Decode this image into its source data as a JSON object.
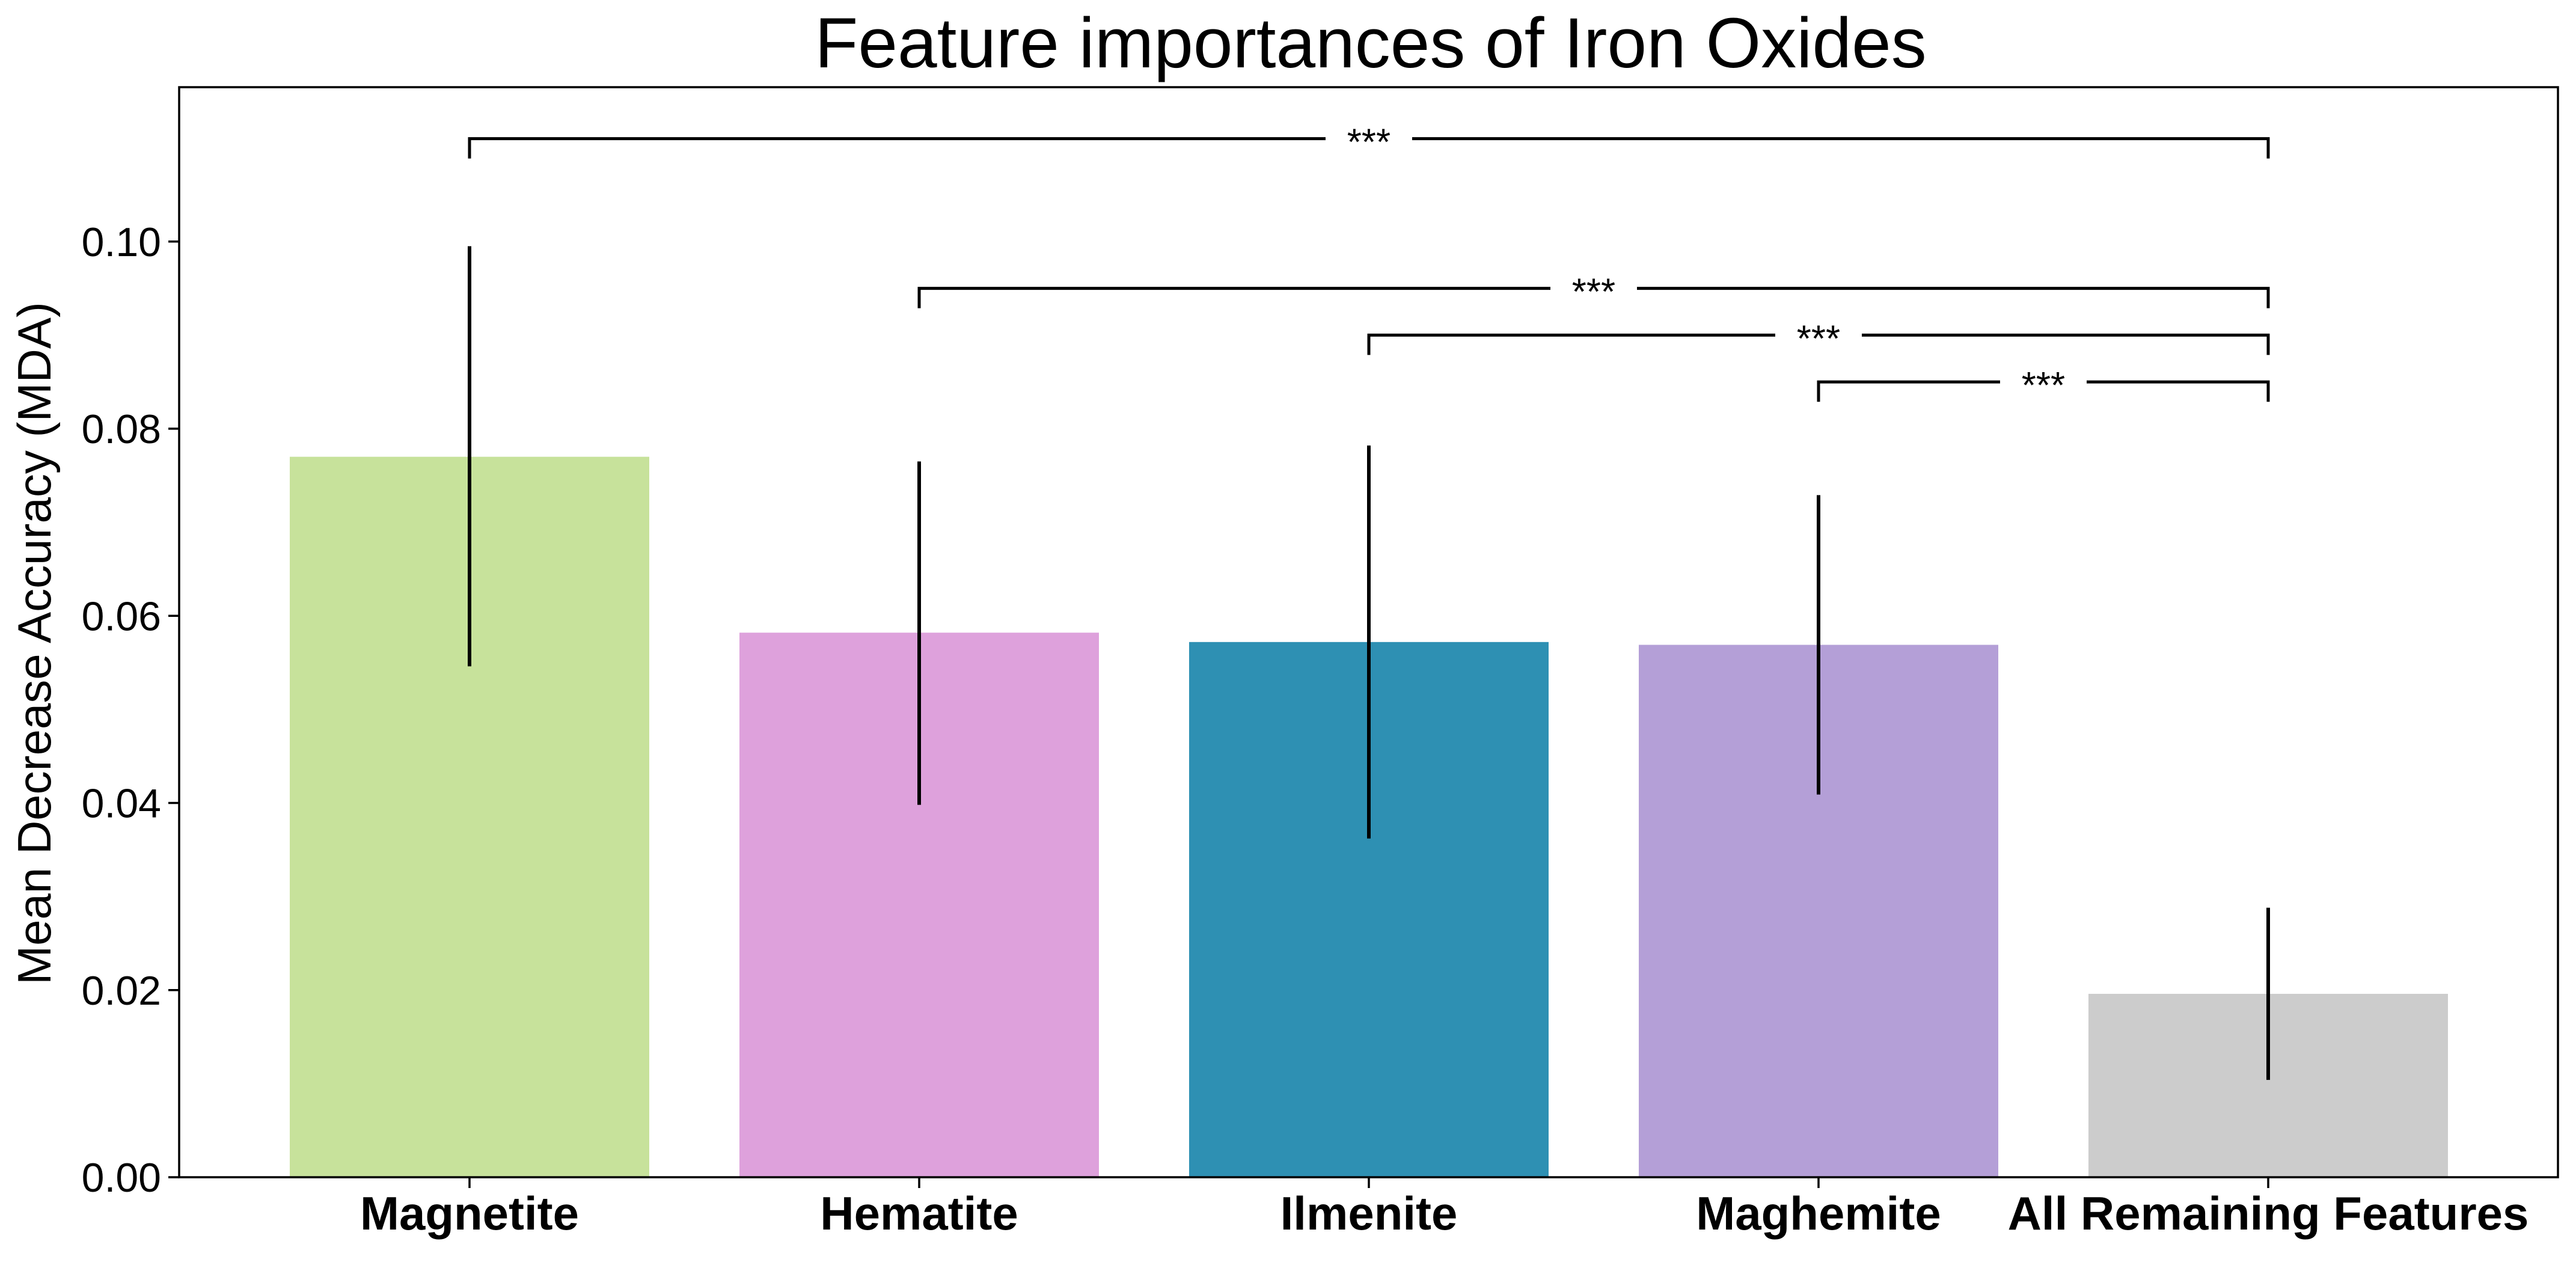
{
  "chart_data": {
    "type": "bar",
    "title": "Feature importances of Iron Oxides",
    "xlabel": "",
    "ylabel": "Mean Decrease Accuracy (MDA)",
    "categories": [
      "Magnetite",
      "Hematite",
      "Ilmenite",
      "Maghemite",
      "All Remaining Features"
    ],
    "values": [
      0.077,
      0.0582,
      0.0572,
      0.0569,
      0.0196
    ],
    "error_low": [
      0.0546,
      0.0398,
      0.0362,
      0.0409,
      0.0104
    ],
    "error_high": [
      0.0995,
      0.0765,
      0.0782,
      0.0729,
      0.0288
    ],
    "colors": [
      "#c7e29b",
      "#dea1dc",
      "#2e90b3",
      "#b49fd7",
      "#cccccc"
    ],
    "ylim": [
      0,
      0.1165
    ],
    "yticks": [
      0,
      0.02,
      0.04,
      0.06,
      0.08,
      0.1
    ],
    "ytick_labels": [
      "0.00",
      "0.02",
      "0.04",
      "0.06",
      "0.08",
      "0.10"
    ],
    "grid": false,
    "annotations": [
      {
        "from": 0,
        "to": 4,
        "level": 0.111,
        "label": "***"
      },
      {
        "from": 1,
        "to": 4,
        "level": 0.095,
        "label": "***"
      },
      {
        "from": 2,
        "to": 4,
        "level": 0.09,
        "label": "***"
      },
      {
        "from": 3,
        "to": 4,
        "level": 0.085,
        "label": "***"
      }
    ]
  }
}
